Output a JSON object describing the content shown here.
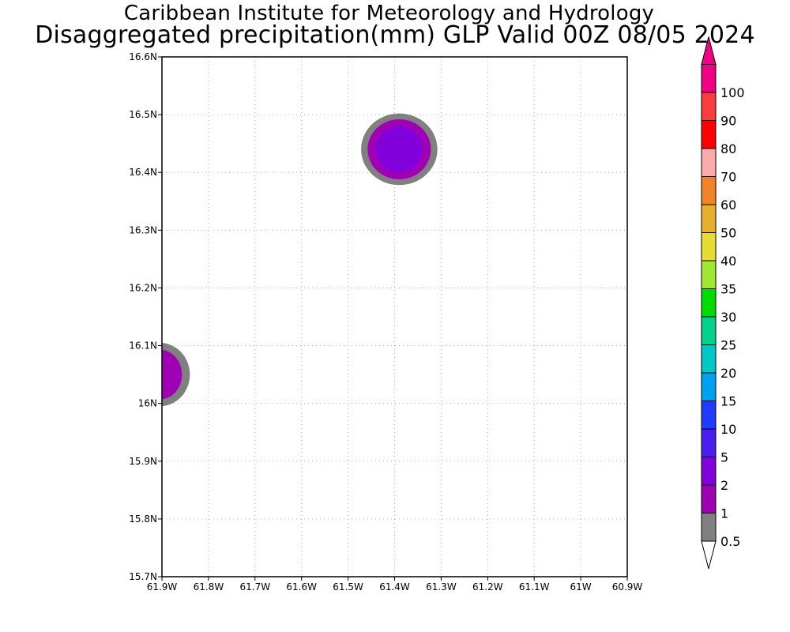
{
  "header": {
    "title_line1": "Caribbean Institute for Meteorology and Hydrology",
    "title_line2": "Disaggregated precipitation(mm) GLP Valid 00Z 08/05 2024"
  },
  "map": {
    "lon_range": [
      -61.9,
      -60.9
    ],
    "lat_range": [
      15.7,
      16.6
    ],
    "lon_ticks": [
      {
        "value": -61.9,
        "label": "61.9W"
      },
      {
        "value": -61.8,
        "label": "61.8W"
      },
      {
        "value": -61.7,
        "label": "61.7W"
      },
      {
        "value": -61.6,
        "label": "61.6W"
      },
      {
        "value": -61.5,
        "label": "61.5W"
      },
      {
        "value": -61.4,
        "label": "61.4W"
      },
      {
        "value": -61.3,
        "label": "61.3W"
      },
      {
        "value": -61.2,
        "label": "61.2W"
      },
      {
        "value": -61.1,
        "label": "61.1W"
      },
      {
        "value": -61.0,
        "label": "61W"
      },
      {
        "value": -60.9,
        "label": "60.9W"
      }
    ],
    "lat_ticks": [
      {
        "value": 15.7,
        "label": "15.7N"
      },
      {
        "value": 15.8,
        "label": "15.8N"
      },
      {
        "value": 15.9,
        "label": "15.9N"
      },
      {
        "value": 16.0,
        "label": "16N"
      },
      {
        "value": 16.1,
        "label": "16.1N"
      },
      {
        "value": 16.2,
        "label": "16.2N"
      },
      {
        "value": 16.3,
        "label": "16.3N"
      },
      {
        "value": 16.4,
        "label": "16.4N"
      },
      {
        "value": 16.5,
        "label": "16.5N"
      },
      {
        "value": 16.6,
        "label": "16.6N"
      }
    ],
    "grid": "dotted",
    "precip_cells": [
      {
        "name": "cell-north",
        "lon": -61.39,
        "lat": 16.44,
        "levels": [
          {
            "min": 0.5,
            "rx_deg": 0.082,
            "ry_deg": 0.062
          },
          {
            "min": 1,
            "rx_deg": 0.068,
            "ry_deg": 0.052
          },
          {
            "min": 2,
            "rx_deg": 0.05,
            "ry_deg": 0.04
          }
        ]
      },
      {
        "name": "cell-west",
        "lon": -61.905,
        "lat": 16.05,
        "levels": [
          {
            "min": 0.5,
            "rx_deg": 0.065,
            "ry_deg": 0.055
          },
          {
            "min": 1,
            "rx_deg": 0.048,
            "ry_deg": 0.043
          }
        ]
      }
    ]
  },
  "colorbar": {
    "levels": [
      {
        "label": "0.5",
        "color": "#808080"
      },
      {
        "label": "1",
        "color": "#a000b4"
      },
      {
        "label": "2",
        "color": "#8200dc"
      },
      {
        "label": "5",
        "color": "#4b1ef0"
      },
      {
        "label": "10",
        "color": "#1e3cff"
      },
      {
        "label": "15",
        "color": "#00a0f0"
      },
      {
        "label": "20",
        "color": "#00c8c8"
      },
      {
        "label": "25",
        "color": "#00d28c"
      },
      {
        "label": "30",
        "color": "#00dc00"
      },
      {
        "label": "35",
        "color": "#a0e632"
      },
      {
        "label": "40",
        "color": "#e6dc32"
      },
      {
        "label": "50",
        "color": "#e6af2d"
      },
      {
        "label": "60",
        "color": "#f08228"
      },
      {
        "label": "70",
        "color": "#faaaaa"
      },
      {
        "label": "80",
        "color": "#ff0000"
      },
      {
        "label": "90",
        "color": "#fa3c3c"
      },
      {
        "label": "100",
        "color": "#f00082"
      }
    ],
    "under_color": "#ffffff",
    "over_color": "#f00082"
  }
}
